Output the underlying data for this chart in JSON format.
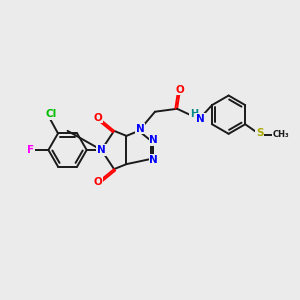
{
  "background_color": "#ebebeb",
  "bond_color": "#1a1a1a",
  "bond_width": 1.4,
  "dbo": 0.06,
  "atom_colors": {
    "N": "#0000ff",
    "O": "#ff0000",
    "Cl": "#00bb00",
    "F": "#ff00ff",
    "S": "#aaaa00",
    "H": "#008888",
    "C": "#1a1a1a"
  },
  "figsize": [
    3.0,
    3.0
  ],
  "dpi": 100
}
